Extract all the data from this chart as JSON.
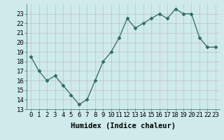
{
  "x": [
    0,
    1,
    2,
    3,
    4,
    5,
    6,
    7,
    8,
    9,
    10,
    11,
    12,
    13,
    14,
    15,
    16,
    17,
    18,
    19,
    20,
    21,
    22,
    23
  ],
  "y": [
    18.5,
    17.0,
    16.0,
    16.5,
    15.5,
    14.5,
    13.5,
    14.0,
    16.0,
    18.0,
    19.0,
    20.5,
    22.5,
    21.5,
    22.0,
    22.5,
    23.0,
    22.5,
    23.5,
    23.0,
    23.0,
    20.5,
    19.5,
    19.5
  ],
  "xlabel": "Humidex (Indice chaleur)",
  "ylim": [
    13,
    24
  ],
  "xlim": [
    -0.5,
    23.5
  ],
  "yticks": [
    13,
    14,
    15,
    16,
    17,
    18,
    19,
    20,
    21,
    22,
    23
  ],
  "xticks": [
    0,
    1,
    2,
    3,
    4,
    5,
    6,
    7,
    8,
    9,
    10,
    11,
    12,
    13,
    14,
    15,
    16,
    17,
    18,
    19,
    20,
    21,
    22,
    23
  ],
  "line_color": "#2e6b5e",
  "marker": "D",
  "marker_size": 2.5,
  "bg_color": "#ceeaea",
  "grid_color": "#b0d4d4",
  "tick_fontsize": 6.5,
  "xlabel_fontsize": 7.5
}
